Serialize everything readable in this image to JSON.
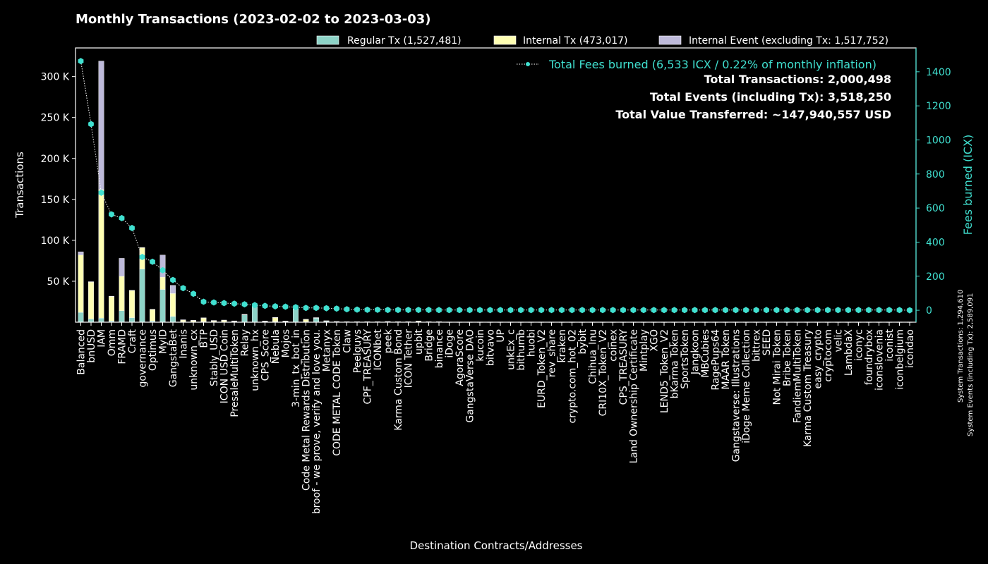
{
  "chart_data": {
    "type": "bar",
    "title": "Monthly Transactions (2023-02-02 to 2023-03-03)",
    "xlabel": "Destination Contracts/Addresses",
    "ylabel": "Transactions",
    "y2label": "Fees burned (ICX)",
    "ylim": [
      0,
      335000
    ],
    "y2lim": [
      -70,
      1540
    ],
    "yticks": [
      50000,
      100000,
      150000,
      200000,
      250000,
      300000
    ],
    "ytick_labels": [
      "50 K",
      "100 K",
      "150 K",
      "200 K",
      "250 K",
      "300 K"
    ],
    "y2ticks": [
      0,
      200,
      400,
      600,
      800,
      1000,
      1200,
      1400
    ],
    "legend_position": "top-right",
    "categories": [
      "Balanced",
      "bnUSD",
      "IAM",
      "Omm",
      "FRAMD",
      "Craft",
      "governance",
      "Optimus",
      "MyID",
      "GangstaBet",
      "Inanis",
      "unknown_cx",
      "BTP",
      "Stably_USD",
      "ICON USD Coin",
      "PresaleMultiToken",
      "Relay",
      "unknown_hx",
      "CPS_Score",
      "Nebula",
      "Mojos",
      "3-min_tx_bot_in",
      "Code Metal Rewards Distribution",
      "broof - we prove, verify and love you.",
      "Metanyx",
      "CODE METAL CODE Token",
      "Claw",
      "Peelguys",
      "CPF_TREASURY",
      "ICONbet",
      "peek",
      "Karma Custom Bond",
      "ICON Tether",
      "upbit",
      "Bridge",
      "binance",
      "iDoge",
      "AgoraScore",
      "GangstaVerse DAO",
      "kucoin",
      "bitvavo",
      "UP",
      "unkEx_c",
      "bithumb",
      "huobi",
      "EURD_Token_V2",
      "rev_share",
      "kraken",
      "crypto.com_hot_02",
      "bybit",
      "Chihua_Inu",
      "CRI10X_Token_V2",
      "coinex",
      "CPS_TREASURY",
      "Land Ownership Certificate",
      "Mintplay",
      "XGO",
      "LEND5_Token_V2",
      "bKarma Token",
      "SportsToken",
      "Jangkoon",
      "MBCubies",
      "RagePups64",
      "MAAR Token",
      "Gangstaverse: Illustrations",
      "iDoge Meme Collection",
      "bittrex",
      "SEED",
      "Not Mirai Token",
      "Bribe Token",
      "FandiemMultiToken",
      "Karma Custom Treasury",
      "easy_crypto",
      "cryptocom",
      "velic",
      "LambdaX",
      "iconyc",
      "foundrybox",
      "iconslovenia",
      "iconist",
      "iconbelgium",
      "icondao"
    ],
    "series": [
      {
        "name": "Regular Tx (1,527,481)",
        "color": "#8dd3c7",
        "values": [
          12000,
          4000,
          5000,
          1500,
          14000,
          5500,
          65000,
          1500,
          40000,
          7000,
          500,
          500,
          600,
          300,
          300,
          300,
          9000,
          19000,
          800,
          600,
          800,
          16000,
          300,
          5000,
          1200,
          300,
          200,
          200,
          200,
          200,
          300,
          200,
          200,
          200,
          200,
          200,
          100,
          100,
          100,
          100,
          100,
          100,
          100,
          100,
          100,
          100,
          100,
          100,
          100,
          100,
          100,
          100,
          100,
          100,
          100,
          100,
          100,
          100,
          100,
          100,
          100,
          100,
          100,
          100,
          100,
          100,
          100,
          100,
          100,
          100,
          100,
          100,
          100,
          100,
          100,
          100,
          100,
          100,
          100,
          100,
          100,
          100
        ]
      },
      {
        "name": "Internal Tx (473,017)",
        "color": "#ffffb3",
        "values": [
          70000,
          45000,
          157000,
          30000,
          42000,
          33000,
          26000,
          14000,
          15000,
          28000,
          2000,
          1500,
          4500,
          1500,
          2000,
          1000,
          300,
          300,
          300,
          5000,
          300,
          300,
          3000,
          300,
          300,
          300,
          200,
          200,
          200,
          200,
          300,
          200,
          200,
          1000,
          200,
          200,
          100,
          100,
          100,
          100,
          100,
          100,
          100,
          100,
          100,
          100,
          100,
          100,
          100,
          100,
          100,
          100,
          100,
          100,
          100,
          100,
          100,
          100,
          100,
          100,
          100,
          100,
          100,
          100,
          100,
          100,
          100,
          100,
          100,
          100,
          100,
          100,
          100,
          100,
          100,
          100,
          100,
          100,
          100,
          100,
          100,
          100
        ]
      },
      {
        "name": "Internal Event (excluding Tx: 1,517,752)",
        "color": "#bebada",
        "values": [
          4000,
          500,
          157000,
          300,
          22000,
          500,
          300,
          300,
          27000,
          10000,
          500,
          300,
          300,
          300,
          300,
          300,
          300,
          300,
          300,
          300,
          300,
          300,
          300,
          300,
          300,
          300,
          200,
          200,
          200,
          200,
          300,
          200,
          200,
          200,
          200,
          200,
          100,
          100,
          100,
          100,
          100,
          100,
          100,
          100,
          100,
          100,
          100,
          100,
          100,
          100,
          100,
          100,
          100,
          100,
          100,
          100,
          100,
          100,
          100,
          100,
          100,
          100,
          100,
          100,
          100,
          100,
          100,
          100,
          100,
          100,
          100,
          100,
          100,
          100,
          100,
          100,
          100,
          100,
          100,
          100,
          100,
          100
        ]
      }
    ],
    "fees_series": {
      "name": "Total Fees burned (6,533 ICX / 0.22% of monthly inflation)",
      "color": "#40e0d0",
      "values": [
        1463,
        1093,
        690,
        563,
        541,
        483,
        313,
        285,
        235,
        178,
        130,
        97,
        50,
        46,
        42,
        39,
        35,
        30,
        26,
        23,
        21,
        18,
        14,
        14,
        12,
        10,
        6,
        4,
        3,
        3,
        2,
        2,
        2,
        2,
        2,
        1,
        1,
        1,
        1,
        1,
        1,
        1,
        1,
        1,
        1,
        1,
        1,
        1,
        1,
        1,
        1,
        1,
        1,
        1,
        1,
        1,
        1,
        1,
        1,
        1,
        1,
        1,
        1,
        1,
        1,
        1,
        1,
        1,
        1,
        1,
        1,
        1,
        1,
        1,
        1,
        1,
        1,
        1,
        1,
        1,
        1,
        0
      ]
    },
    "annotations": [
      "Total Transactions: 2,000,498",
      "Total Events (including Tx): 3,518,250",
      "Total Value Transferred: ~147,940,557 USD"
    ],
    "side_notes": [
      "System Transactions: 1,294,610",
      "System Events (including Tx): 2,589,091"
    ],
    "colors": {
      "background": "#000000",
      "text": "#ffffff",
      "accent": "#40e0d0",
      "frame": "#ffffff"
    }
  }
}
